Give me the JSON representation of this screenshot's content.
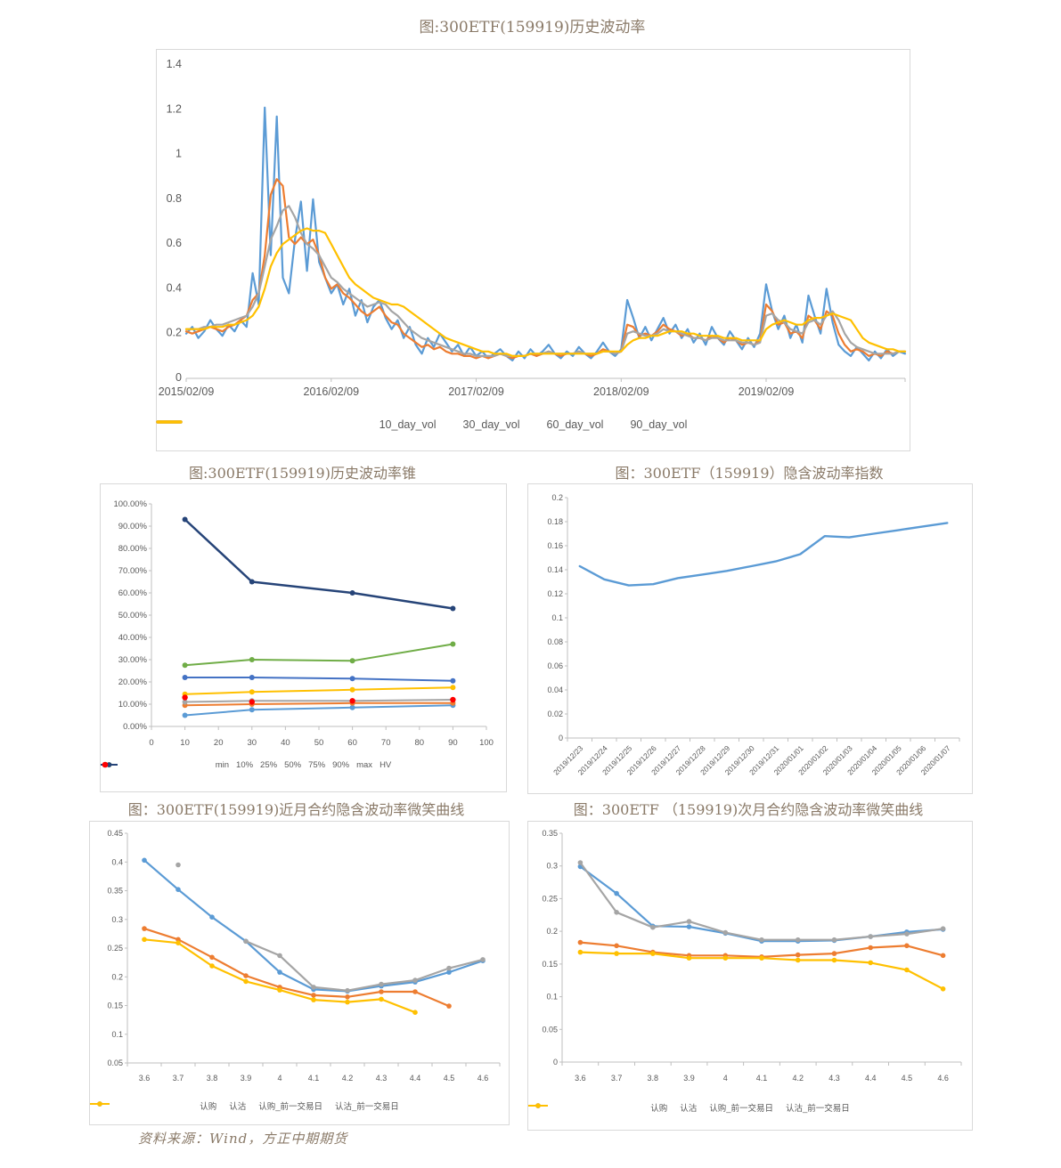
{
  "titles": {
    "hist_vol": "图:300ETF(159919)历史波动率",
    "vol_cone": "图:300ETF(159919)历史波动率锥",
    "iv_index": "图：300ETF（159919）隐含波动率指数",
    "near_smile": "图：300ETF(159919)近月合约隐含波动率微笑曲线",
    "next_smile": "图：300ETF （159919)次月合约隐含波动率微笑曲线"
  },
  "source": "资料来源：Wind，方正中期期货",
  "palette": {
    "blue": "#5B9BD5",
    "orange": "#ED7D31",
    "gray": "#A5A5A5",
    "gold": "#FFC000",
    "mid_blue": "#4472C4",
    "green": "#70AD47",
    "navy": "#264478",
    "red": "#FF0000",
    "axis_text": "#595959",
    "axis_line": "#BFBFBF",
    "title_text": "#8A7A68"
  },
  "chart_data": [
    {
      "id": "hist_vol",
      "type": "line",
      "title": "图:300ETF(159919)历史波动率",
      "x_mode": "edge",
      "x_tick_positions": [
        0,
        24,
        48,
        72,
        96
      ],
      "x_tick_labels": [
        "2015/02/09",
        "2016/02/09",
        "2017/02/09",
        "2018/02/09",
        "2019/02/09"
      ],
      "y_min": 0,
      "y_max": 1.4,
      "y_tick_labels": [
        "1.4",
        "1.2",
        "1",
        "0.8",
        "0.6",
        "0.4",
        "0.2",
        "0"
      ],
      "grid": false,
      "legend_position": "bottom",
      "series": [
        {
          "name": "10_day_vol",
          "color": "#5B9BD5",
          "values": [
            0.2,
            0.23,
            0.18,
            0.21,
            0.26,
            0.22,
            0.19,
            0.24,
            0.21,
            0.26,
            0.23,
            0.47,
            0.33,
            1.21,
            0.55,
            1.17,
            0.45,
            0.38,
            0.62,
            0.79,
            0.48,
            0.8,
            0.52,
            0.45,
            0.38,
            0.42,
            0.33,
            0.4,
            0.28,
            0.35,
            0.25,
            0.32,
            0.35,
            0.27,
            0.22,
            0.26,
            0.18,
            0.23,
            0.15,
            0.11,
            0.18,
            0.14,
            0.2,
            0.16,
            0.12,
            0.15,
            0.1,
            0.14,
            0.1,
            0.12,
            0.09,
            0.11,
            0.13,
            0.1,
            0.08,
            0.12,
            0.09,
            0.13,
            0.1,
            0.12,
            0.15,
            0.11,
            0.09,
            0.12,
            0.1,
            0.14,
            0.11,
            0.09,
            0.12,
            0.16,
            0.12,
            0.1,
            0.13,
            0.35,
            0.27,
            0.18,
            0.23,
            0.17,
            0.22,
            0.27,
            0.2,
            0.24,
            0.18,
            0.22,
            0.16,
            0.2,
            0.15,
            0.23,
            0.18,
            0.15,
            0.21,
            0.17,
            0.13,
            0.18,
            0.14,
            0.2,
            0.42,
            0.3,
            0.22,
            0.28,
            0.18,
            0.24,
            0.16,
            0.37,
            0.28,
            0.2,
            0.4,
            0.25,
            0.15,
            0.12,
            0.1,
            0.14,
            0.11,
            0.08,
            0.12,
            0.09,
            0.13,
            0.1,
            0.12,
            0.11
          ]
        },
        {
          "name": "30_day_vol",
          "color": "#ED7D31",
          "values": [
            0.21,
            0.2,
            0.21,
            0.22,
            0.23,
            0.22,
            0.21,
            0.23,
            0.24,
            0.26,
            0.28,
            0.35,
            0.38,
            0.55,
            0.82,
            0.89,
            0.86,
            0.63,
            0.6,
            0.63,
            0.6,
            0.62,
            0.55,
            0.45,
            0.4,
            0.42,
            0.38,
            0.36,
            0.33,
            0.3,
            0.28,
            0.3,
            0.32,
            0.28,
            0.25,
            0.24,
            0.2,
            0.18,
            0.16,
            0.14,
            0.15,
            0.13,
            0.14,
            0.12,
            0.11,
            0.11,
            0.1,
            0.1,
            0.09,
            0.1,
            0.09,
            0.1,
            0.11,
            0.1,
            0.09,
            0.1,
            0.1,
            0.11,
            0.1,
            0.11,
            0.12,
            0.11,
            0.1,
            0.11,
            0.11,
            0.12,
            0.11,
            0.1,
            0.11,
            0.13,
            0.12,
            0.11,
            0.12,
            0.24,
            0.23,
            0.19,
            0.2,
            0.19,
            0.21,
            0.24,
            0.22,
            0.21,
            0.19,
            0.2,
            0.18,
            0.18,
            0.17,
            0.19,
            0.18,
            0.16,
            0.18,
            0.17,
            0.15,
            0.16,
            0.15,
            0.17,
            0.33,
            0.3,
            0.24,
            0.25,
            0.2,
            0.21,
            0.18,
            0.28,
            0.26,
            0.22,
            0.3,
            0.28,
            0.2,
            0.15,
            0.12,
            0.13,
            0.12,
            0.1,
            0.11,
            0.1,
            0.12,
            0.11,
            0.12,
            0.12
          ]
        },
        {
          "name": "60_day_vol",
          "color": "#A5A5A5",
          "values": [
            0.22,
            0.22,
            0.22,
            0.23,
            0.23,
            0.24,
            0.24,
            0.25,
            0.26,
            0.27,
            0.28,
            0.32,
            0.38,
            0.5,
            0.62,
            0.68,
            0.75,
            0.77,
            0.72,
            0.65,
            0.6,
            0.58,
            0.55,
            0.5,
            0.45,
            0.43,
            0.4,
            0.38,
            0.36,
            0.34,
            0.32,
            0.33,
            0.34,
            0.33,
            0.3,
            0.28,
            0.25,
            0.22,
            0.2,
            0.18,
            0.17,
            0.16,
            0.15,
            0.14,
            0.13,
            0.12,
            0.11,
            0.11,
            0.1,
            0.1,
            0.1,
            0.1,
            0.11,
            0.1,
            0.1,
            0.1,
            0.1,
            0.11,
            0.11,
            0.11,
            0.12,
            0.11,
            0.11,
            0.11,
            0.11,
            0.12,
            0.11,
            0.11,
            0.11,
            0.12,
            0.12,
            0.11,
            0.12,
            0.2,
            0.21,
            0.2,
            0.19,
            0.19,
            0.2,
            0.22,
            0.21,
            0.21,
            0.2,
            0.19,
            0.18,
            0.18,
            0.17,
            0.18,
            0.18,
            0.17,
            0.17,
            0.17,
            0.16,
            0.16,
            0.15,
            0.16,
            0.28,
            0.29,
            0.26,
            0.25,
            0.22,
            0.21,
            0.2,
            0.25,
            0.26,
            0.24,
            0.28,
            0.3,
            0.26,
            0.2,
            0.16,
            0.14,
            0.13,
            0.12,
            0.11,
            0.11,
            0.11,
            0.11,
            0.12,
            0.12
          ]
        },
        {
          "name": "90_day_vol",
          "color": "#FFC000",
          "values": [
            0.22,
            0.22,
            0.22,
            0.22,
            0.23,
            0.23,
            0.23,
            0.24,
            0.24,
            0.25,
            0.26,
            0.28,
            0.32,
            0.4,
            0.5,
            0.56,
            0.6,
            0.62,
            0.64,
            0.66,
            0.67,
            0.66,
            0.66,
            0.65,
            0.6,
            0.55,
            0.5,
            0.45,
            0.42,
            0.4,
            0.38,
            0.36,
            0.35,
            0.34,
            0.33,
            0.33,
            0.32,
            0.3,
            0.28,
            0.26,
            0.24,
            0.22,
            0.2,
            0.18,
            0.17,
            0.16,
            0.15,
            0.14,
            0.13,
            0.12,
            0.12,
            0.11,
            0.11,
            0.11,
            0.1,
            0.1,
            0.1,
            0.11,
            0.11,
            0.11,
            0.11,
            0.11,
            0.11,
            0.11,
            0.11,
            0.11,
            0.11,
            0.11,
            0.11,
            0.12,
            0.12,
            0.12,
            0.12,
            0.15,
            0.17,
            0.18,
            0.18,
            0.19,
            0.19,
            0.2,
            0.21,
            0.21,
            0.21,
            0.2,
            0.2,
            0.19,
            0.19,
            0.19,
            0.19,
            0.18,
            0.18,
            0.18,
            0.17,
            0.17,
            0.17,
            0.17,
            0.22,
            0.24,
            0.25,
            0.26,
            0.25,
            0.24,
            0.24,
            0.26,
            0.27,
            0.27,
            0.28,
            0.29,
            0.28,
            0.27,
            0.26,
            0.22,
            0.18,
            0.16,
            0.15,
            0.14,
            0.13,
            0.13,
            0.12,
            0.12
          ]
        }
      ]
    },
    {
      "id": "vol_cone",
      "type": "line",
      "title": "图:300ETF(159919)历史波动率锥",
      "x_mode": "numeric",
      "x": [
        10,
        30,
        60,
        90
      ],
      "x_min": 0,
      "x_max": 100,
      "x_axis_ticks": [
        0,
        10,
        20,
        30,
        40,
        50,
        60,
        70,
        80,
        90,
        100
      ],
      "x_axis_tick_labels": [
        "0",
        "10",
        "20",
        "30",
        "40",
        "50",
        "60",
        "70",
        "80",
        "90",
        "100"
      ],
      "y_min": 0,
      "y_max": 1.0,
      "y_tick_labels": [
        "100.00%",
        "90.00%",
        "80.00%",
        "70.00%",
        "60.00%",
        "50.00%",
        "40.00%",
        "30.00%",
        "20.00%",
        "10.00%",
        "0.00%"
      ],
      "grid": false,
      "legend_position": "bottom",
      "series": [
        {
          "name": "min",
          "color": "#5B9BD5",
          "markers": true,
          "values": [
            0.05,
            0.075,
            0.085,
            0.095
          ]
        },
        {
          "name": "10%",
          "color": "#ED7D31",
          "markers": true,
          "values": [
            0.095,
            0.1,
            0.105,
            0.105
          ]
        },
        {
          "name": "25%",
          "color": "#A5A5A5",
          "markers": true,
          "values": [
            0.11,
            0.115,
            0.115,
            0.12
          ]
        },
        {
          "name": "50%",
          "color": "#FFC000",
          "markers": true,
          "values": [
            0.145,
            0.155,
            0.165,
            0.175
          ]
        },
        {
          "name": "75%",
          "color": "#4472C4",
          "markers": true,
          "values": [
            0.22,
            0.22,
            0.215,
            0.205
          ]
        },
        {
          "name": "90%",
          "color": "#70AD47",
          "markers": true,
          "values": [
            0.275,
            0.3,
            0.295,
            0.37
          ]
        },
        {
          "name": "max",
          "color": "#264478",
          "markers": true,
          "width": 2.5,
          "values": [
            0.93,
            0.65,
            0.6,
            0.53
          ]
        },
        {
          "name": "HV",
          "color": "#FF0000",
          "markers": true,
          "marker_only": true,
          "values": [
            0.13,
            0.11,
            0.115,
            0.12
          ]
        }
      ]
    },
    {
      "id": "iv_index",
      "type": "line",
      "title": "图：300ETF（159919）隐含波动率指数",
      "x_mode": "category",
      "x_label_rotate": true,
      "x_labels": [
        "2019/12/23",
        "2019/12/24",
        "2019/12/25",
        "2019/12/26",
        "2019/12/27",
        "2019/12/28",
        "2019/12/29",
        "2019/12/30",
        "2019/12/31",
        "2020/01/01",
        "2020/01/02",
        "2020/01/03",
        "2020/01/04",
        "2020/01/05",
        "2020/01/06",
        "2020/01/07"
      ],
      "y_min": 0,
      "y_max": 0.2,
      "y_tick_labels": [
        "0.2",
        "0.18",
        "0.16",
        "0.14",
        "0.12",
        "0.1",
        "0.08",
        "0.06",
        "0.04",
        "0.02",
        "0"
      ],
      "grid": false,
      "legend_position": "none",
      "series": [
        {
          "name": "隐含波动率指数",
          "color": "#5B9BD5",
          "legend": false,
          "values": [
            0.143,
            0.132,
            0.127,
            0.128,
            0.133,
            0.136,
            0.139,
            0.143,
            0.147,
            0.153,
            0.168,
            0.167,
            0.17,
            0.173,
            0.176,
            0.179
          ]
        }
      ]
    },
    {
      "id": "near_smile",
      "type": "line",
      "title": "图：300ETF(159919)近月合约隐含波动率微笑曲线",
      "x_mode": "category",
      "x_labels": [
        "3.6",
        "3.7",
        "3.8",
        "3.9",
        "4",
        "4.1",
        "4.2",
        "4.3",
        "4.4",
        "4.5",
        "4.6"
      ],
      "y_min": 0.05,
      "y_max": 0.45,
      "y_tick_labels": [
        "0.45",
        "0.4",
        "0.35",
        "0.3",
        "0.25",
        "0.2",
        "0.15",
        "0.1",
        "0.05"
      ],
      "grid": false,
      "legend_position": "bottom",
      "series": [
        {
          "name": "认购",
          "color": "#5B9BD5",
          "markers": true,
          "values": [
            0.403,
            0.352,
            0.304,
            0.262,
            0.208,
            0.178,
            0.175,
            0.184,
            0.191,
            0.208,
            0.228
          ]
        },
        {
          "name": "认沽",
          "color": "#ED7D31",
          "markers": true,
          "values": [
            0.284,
            0.265,
            0.234,
            0.202,
            0.182,
            0.168,
            0.165,
            0.174,
            0.174,
            0.149,
            null
          ]
        },
        {
          "name": "认购_前一交易日",
          "color": "#A5A5A5",
          "markers": true,
          "values": [
            null,
            0.395,
            null,
            0.262,
            0.237,
            0.182,
            0.176,
            0.187,
            0.194,
            0.215,
            0.23
          ]
        },
        {
          "name": "认沽_前一交易日",
          "color": "#FFC000",
          "markers": true,
          "values": [
            0.265,
            0.259,
            0.219,
            0.192,
            0.177,
            0.16,
            0.156,
            0.161,
            0.138,
            null,
            null
          ]
        }
      ]
    },
    {
      "id": "next_smile",
      "type": "line",
      "title": "图：300ETF （159919)次月合约隐含波动率微笑曲线",
      "x_mode": "category",
      "x_labels": [
        "3.6",
        "3.7",
        "3.8",
        "3.9",
        "4",
        "4.1",
        "4.2",
        "4.3",
        "4.4",
        "4.5",
        "4.6"
      ],
      "y_min": 0,
      "y_max": 0.35,
      "y_tick_labels": [
        "0.35",
        "0.3",
        "0.25",
        "0.2",
        "0.15",
        "0.1",
        "0.05",
        "0"
      ],
      "grid": false,
      "legend_position": "bottom",
      "series": [
        {
          "name": "认购",
          "color": "#5B9BD5",
          "markers": true,
          "values": [
            0.299,
            0.258,
            0.208,
            0.207,
            0.197,
            0.185,
            0.185,
            0.186,
            0.192,
            0.199,
            0.203
          ]
        },
        {
          "name": "认沽",
          "color": "#ED7D31",
          "markers": true,
          "values": [
            0.183,
            0.178,
            0.168,
            0.163,
            0.163,
            0.161,
            0.164,
            0.166,
            0.175,
            0.178,
            0.163
          ]
        },
        {
          "name": "认购_前一交易日",
          "color": "#A5A5A5",
          "markers": true,
          "values": [
            0.305,
            0.229,
            0.206,
            0.215,
            0.198,
            0.187,
            0.187,
            0.187,
            0.192,
            0.196,
            0.204
          ]
        },
        {
          "name": "认沽_前一交易日",
          "color": "#FFC000",
          "markers": true,
          "values": [
            0.168,
            0.166,
            0.166,
            0.159,
            0.159,
            0.159,
            0.156,
            0.156,
            0.152,
            0.141,
            0.112
          ]
        }
      ]
    }
  ]
}
